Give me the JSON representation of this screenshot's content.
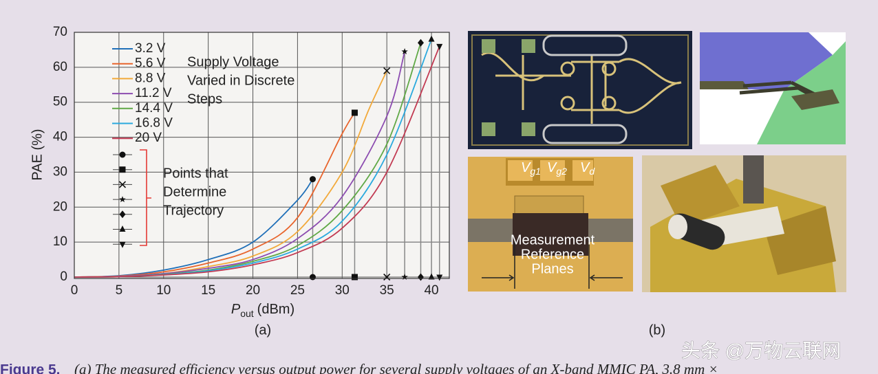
{
  "chart_data": {
    "type": "line",
    "xlabel": {
      "symbol": "P",
      "subscript": "out",
      "unit": "(dBm)"
    },
    "ylabel": "PAE (%)",
    "xlim": [
      0,
      42
    ],
    "ylim": [
      0,
      70
    ],
    "xticks": [
      0,
      5,
      10,
      15,
      20,
      25,
      30,
      35,
      40
    ],
    "yticks": [
      0,
      10,
      20,
      30,
      40,
      50,
      60,
      70
    ],
    "grid": true,
    "series": [
      {
        "name": "3.2 V",
        "color": "#1f6fb8",
        "marker": "circle",
        "x": [
          0,
          5,
          10,
          15,
          20,
          25,
          26.7
        ],
        "values": [
          0,
          0.4,
          2,
          5,
          10,
          22,
          28
        ]
      },
      {
        "name": "5.6 V",
        "color": "#e8642c",
        "marker": "square",
        "x": [
          0,
          5,
          10,
          15,
          20,
          25,
          30,
          31.4
        ],
        "values": [
          0,
          0.3,
          1.5,
          4,
          8,
          17,
          41,
          47
        ]
      },
      {
        "name": "8.8 V",
        "color": "#f2a93a",
        "marker": "x",
        "x": [
          0,
          5,
          10,
          15,
          20,
          25,
          30,
          33,
          35
        ],
        "values": [
          0,
          0.2,
          1,
          3,
          6,
          13,
          30,
          48,
          59
        ]
      },
      {
        "name": "11.2 V",
        "color": "#8c4cb0",
        "marker": "star",
        "x": [
          0,
          5,
          10,
          15,
          20,
          25,
          30,
          35,
          37
        ],
        "values": [
          0,
          0.2,
          1,
          2.5,
          5,
          11,
          23,
          46,
          64.5
        ]
      },
      {
        "name": "14.4 V",
        "color": "#5fa845",
        "marker": "diamond",
        "x": [
          0,
          5,
          10,
          15,
          20,
          25,
          30,
          35,
          38.8
        ],
        "values": [
          0,
          0.1,
          0.8,
          2,
          4.5,
          9,
          19,
          38,
          67
        ]
      },
      {
        "name": "16.8 V",
        "color": "#2aa9de",
        "marker": "triangle",
        "x": [
          0,
          5,
          10,
          15,
          20,
          25,
          30,
          35,
          40
        ],
        "values": [
          0,
          0.1,
          0.7,
          1.8,
          4,
          8,
          16,
          35,
          68
        ]
      },
      {
        "name": "20 V",
        "color": "#c23a52",
        "marker": "triangle-down",
        "x": [
          0,
          5,
          10,
          15,
          20,
          25,
          30,
          35,
          40.9
        ],
        "values": [
          0,
          0.1,
          0.6,
          1.5,
          3.5,
          7,
          14,
          30,
          66
        ]
      }
    ],
    "annotations": [
      [
        "Supply Voltage",
        "Varied in Discrete",
        "Steps"
      ],
      [
        "Points that",
        "Determine",
        "Trajectory"
      ]
    ],
    "panel_label": "(a)"
  },
  "figure": {
    "panel_label": "(b)",
    "gate_labels": [
      {
        "main": "V",
        "sub": "g1"
      },
      {
        "main": "V",
        "sub": "g2"
      },
      {
        "main": "V",
        "sub": "d"
      }
    ],
    "photo_caption": [
      "Measurement",
      "Reference",
      "Planes"
    ],
    "caption_label": "Figure 5.",
    "caption_text": "(a) The measured efficiency versus output power for several supply voltages of an X-band MMIC PA, 3.8 mm ×",
    "watermark": "头条 @万物云联网"
  }
}
